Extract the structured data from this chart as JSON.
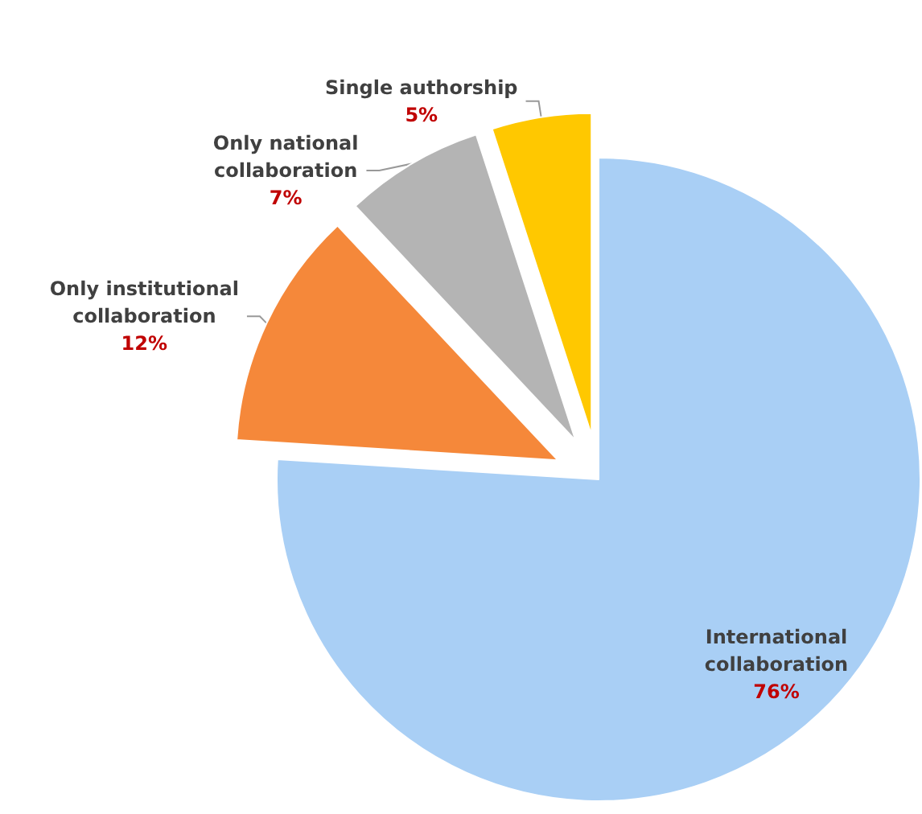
{
  "chart_data": {
    "type": "pie",
    "categories": [
      "International\ncollaboration",
      "Only institutional\ncollaboration",
      "Only national\ncollaboration",
      "Single authorship"
    ],
    "values": [
      76,
      12,
      7,
      5
    ],
    "colors": [
      "#a9cff5",
      "#f5883a",
      "#b4b4b4",
      "#ffc800"
    ],
    "value_labels": [
      "76%",
      "12%",
      "7%",
      "5%"
    ]
  }
}
